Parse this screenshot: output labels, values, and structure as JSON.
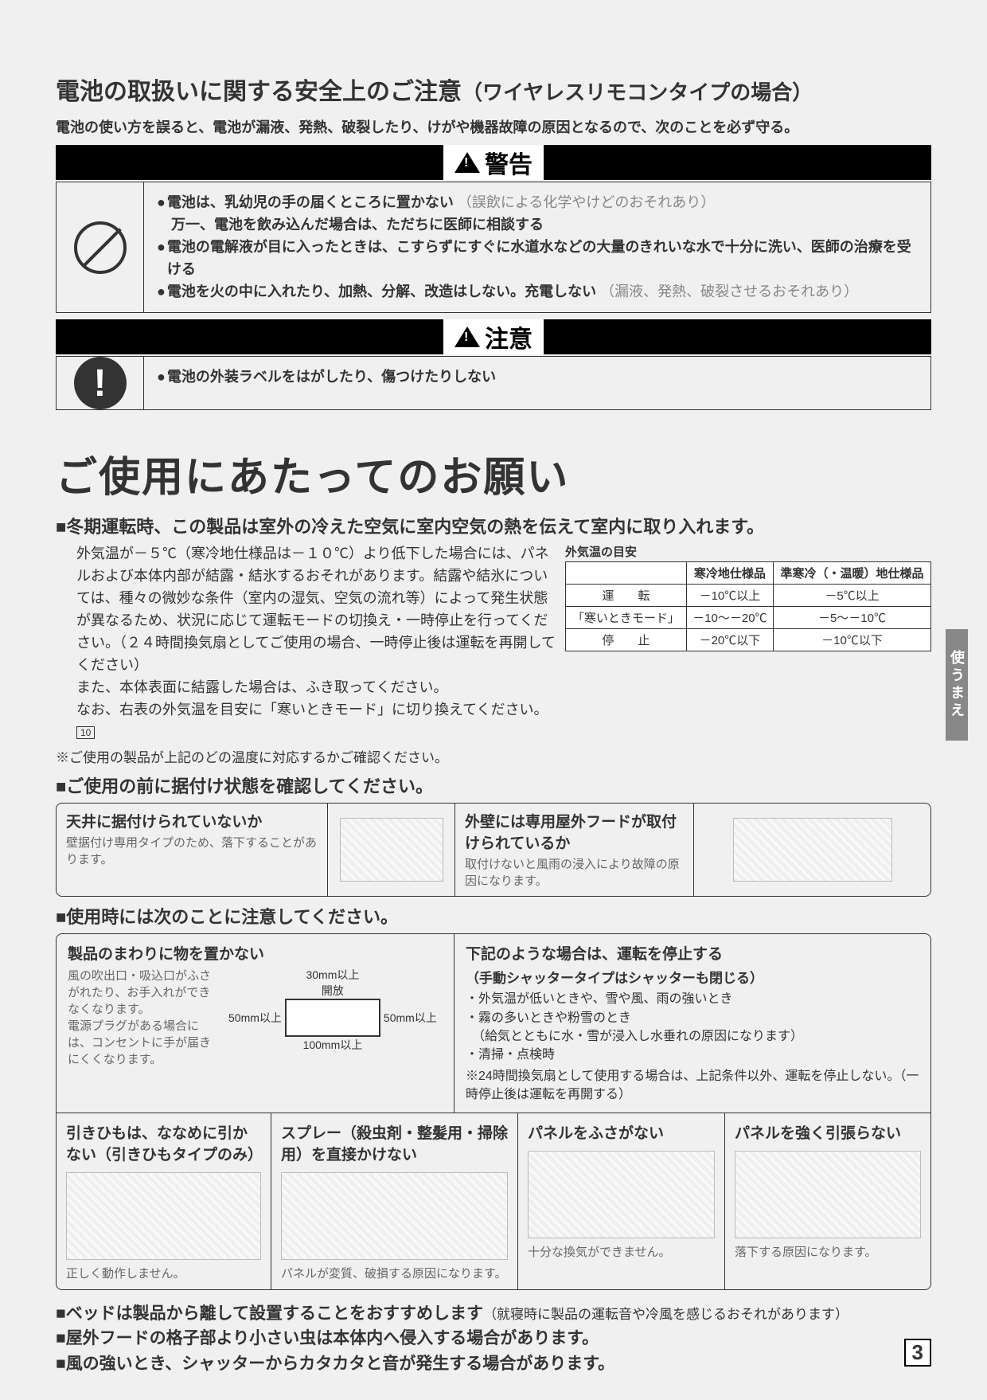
{
  "header": {
    "title": "電池の取扱いに関する安全上のご注意",
    "subtitle": "（ワイヤレスリモコンタイプの場合）",
    "intro": "電池の使い方を誤ると、電池が漏液、発熱、破裂したり、けがや機器故障の原因となるので、次のことを必ず守る。"
  },
  "warning": {
    "label": "警告",
    "items": [
      {
        "main": "電池は、乳幼児の手の届くところに置かない",
        "note": "（誤飲による化学やけどのおそれあり）"
      },
      {
        "main": "万一、電池を飲み込んだ場合は、ただちに医師に相談する",
        "note": "",
        "nobullet": true
      },
      {
        "main": "電池の電解液が目に入ったときは、こすらずにすぐに水道水などの大量のきれいな水で十分に洗い、医師の治療を受ける",
        "note": ""
      },
      {
        "main": "電池を火の中に入れたり、加熱、分解、改造はしない。充電しない",
        "note": "（漏液、発熱、破裂させるおそれあり）"
      }
    ]
  },
  "caution": {
    "label": "注意",
    "items": [
      {
        "main": "電池の外装ラベルをはがしたり、傷つけたりしない",
        "note": ""
      }
    ]
  },
  "request": {
    "big_title": "ご使用にあたってのお願い",
    "winter_heading": "冬期運転時、この製品は室外の冷えた空気に室内空気の熱を伝えて室内に取り入れます。",
    "winter_body1": "外気温が－５℃（寒冷地仕様品は－１０℃）より低下した場合には、パネルおよび本体内部が結露・結氷するおそれがあります。結露や結氷については、種々の微妙な条件（室内の湿気、空気の流れ等）によって発生状態が異なるため、状況に応じて運転モードの切換え・一時停止を行ってください。（２４時間換気扇としてご使用の場合、一時停止後は運転を再開してください）",
    "winter_body2": "また、本体表面に結露した場合は、ふき取ってください。",
    "winter_body3a": "なお、右表の外気温を目安に「寒いときモード」に切り換えてください。",
    "page_ref": "10",
    "confirm_note": "※ご使用の製品が上記のどの温度に対応するかご確認ください。",
    "temp_caption": "外気温の目安",
    "temp_table": {
      "headers": [
        "",
        "寒冷地仕様品",
        "準寒冷（・温暖）地仕様品"
      ],
      "rows": [
        [
          "運　　転",
          "－10℃以上",
          "－5℃以上"
        ],
        [
          "「寒いときモード」",
          "－10～－20℃",
          "－5～－10℃"
        ],
        [
          "停　　止",
          "－20℃以下",
          "－10℃以下"
        ]
      ]
    },
    "install_heading": "ご使用の前に据付け状態を確認してください。",
    "install_checks": [
      {
        "title": "天井に据付けられていないか",
        "desc": "壁据付け専用タイプのため、落下することがあります。"
      },
      {
        "title": "外壁には専用屋外フードが取付けられているか",
        "desc": "取付けないと風雨の浸入により故障の原因になります。"
      }
    ],
    "usage_heading": "使用時には次のことに注意してください。",
    "usage_r1c1": {
      "title": "製品のまわりに物を置かない",
      "desc": "風の吹出口・吸込口がふさがれたり、お手入れができなくなります。\n電源プラグがある場合には、コンセントに手が届きにくくなります。",
      "dims": {
        "top": "30mm以上",
        "top2": "開放",
        "right": "50mm以上",
        "left": "50mm以上",
        "bottom": "100mm以上"
      }
    },
    "usage_r1c2": {
      "title": "下記のような場合は、運転を停止する",
      "sub": "（手動シャッタータイプはシャッターも閉じる）",
      "items": [
        "・外気温が低いときや、雪や風、雨の強いとき",
        "・霧の多いときや粉雪のとき",
        "　（給気とともに水・雪が浸入し水垂れの原因になります）",
        "・清掃・点検時"
      ],
      "note": "※24時間換気扇として使用する場合は、上記条件以外、運転を停止しない。（一時停止後は運転を再開する）"
    },
    "usage_r2": [
      {
        "title": "引きひもは、ななめに引かない（引きひもタイプのみ）",
        "foot": "正しく動作しません。"
      },
      {
        "title": "スプレー（殺虫剤・整髪用・掃除用）を直接かけない",
        "foot": "パネルが変質、破損する原因になります。"
      },
      {
        "title": "パネルをふさがない",
        "foot": "十分な換気ができません。"
      },
      {
        "title": "パネルを強く引張らない",
        "foot": "落下する原因になります。"
      }
    ]
  },
  "bottom": {
    "l1": "ベッドは製品から離して設置することをおすすめします",
    "l1s": "（就寝時に製品の運転音や冷風を感じるおそれがあります）",
    "l2": "屋外フードの格子部より小さい虫は本体内へ侵入する場合があります。",
    "l3": "風の強いとき、シャッターからカタカタと音が発生する場合があります。"
  },
  "side_tab": "使うまえ",
  "page_number": "3"
}
